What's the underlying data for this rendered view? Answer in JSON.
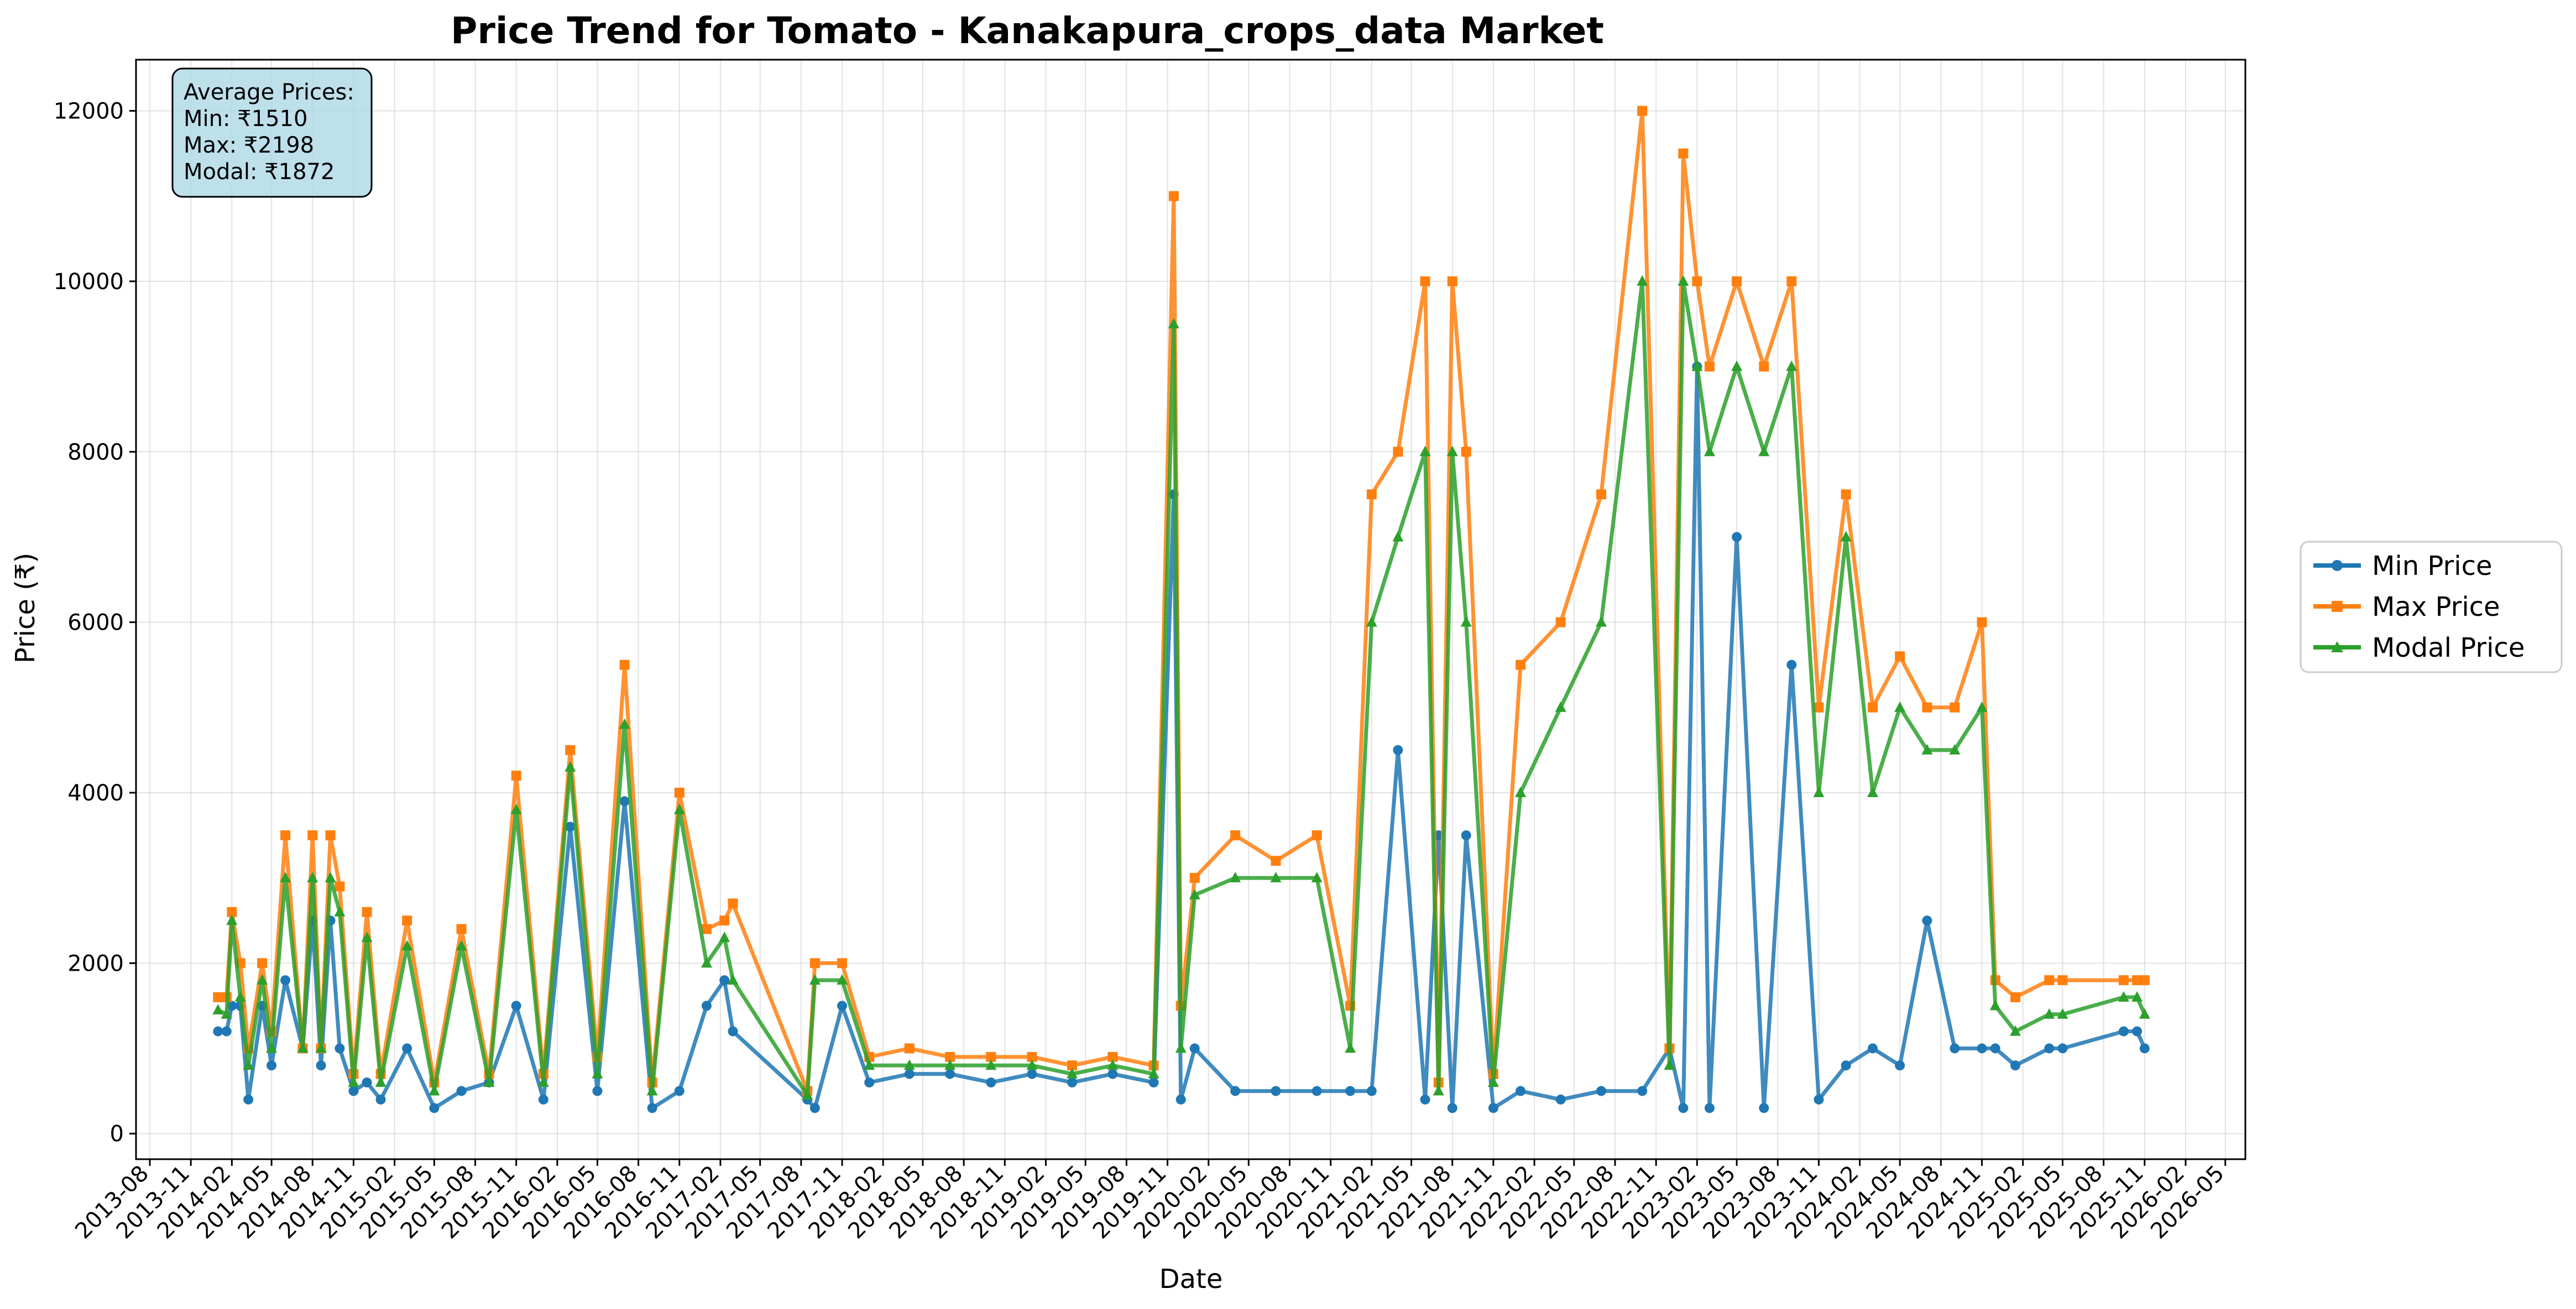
{
  "chart_data": {
    "type": "line",
    "title": "Price Trend for Tomato - Kanakapura_crops_data Market",
    "xlabel": "Date",
    "ylabel": "Price (₹)",
    "ylim": [
      -300,
      12600
    ],
    "xlim": [
      "2013-07-01",
      "2026-06-15"
    ],
    "grid": true,
    "legend_position": "right",
    "y_ticks": [
      0,
      2000,
      4000,
      6000,
      8000,
      10000,
      12000
    ],
    "x_ticks": [
      "2013-08",
      "2013-11",
      "2014-02",
      "2014-05",
      "2014-08",
      "2014-11",
      "2015-02",
      "2015-05",
      "2015-08",
      "2015-11",
      "2016-02",
      "2016-05",
      "2016-08",
      "2016-11",
      "2017-02",
      "2017-05",
      "2017-08",
      "2017-11",
      "2018-02",
      "2018-05",
      "2018-08",
      "2018-11",
      "2019-02",
      "2019-05",
      "2019-08",
      "2019-11",
      "2020-02",
      "2020-05",
      "2020-08",
      "2020-11",
      "2021-02",
      "2021-05",
      "2021-08",
      "2021-11",
      "2022-02",
      "2022-05",
      "2022-08",
      "2022-11",
      "2023-02",
      "2023-05",
      "2023-08",
      "2023-11",
      "2024-02",
      "2024-05",
      "2024-08",
      "2024-11",
      "2025-02",
      "2025-05",
      "2025-08",
      "2025-11",
      "2026-02",
      "2026-05"
    ],
    "stats_box": {
      "heading": "Average Prices:",
      "lines": [
        "Min: ₹1510",
        "Max: ₹2198",
        "Modal: ₹1872"
      ]
    },
    "colors": {
      "min": "#1f77b4",
      "max": "#ff7f0e",
      "modal": "#2ca02c",
      "stats_box_fill": "#add8e6"
    },
    "x": [
      "2014-01-01",
      "2014-01-20",
      "2014-02-01",
      "2014-02-20",
      "2014-03-10",
      "2014-04-10",
      "2014-05-01",
      "2014-06-01",
      "2014-07-10",
      "2014-08-01",
      "2014-08-20",
      "2014-09-10",
      "2014-10-01",
      "2014-11-01",
      "2014-12-01",
      "2015-01-01",
      "2015-03-01",
      "2015-05-01",
      "2015-07-01",
      "2015-09-01",
      "2015-11-01",
      "2016-01-01",
      "2016-03-01",
      "2016-05-01",
      "2016-07-01",
      "2016-09-01",
      "2016-11-01",
      "2017-01-01",
      "2017-02-10",
      "2017-03-01",
      "2017-08-15",
      "2017-09-01",
      "2017-11-01",
      "2018-01-01",
      "2018-04-01",
      "2018-07-01",
      "2018-10-01",
      "2019-01-01",
      "2019-04-01",
      "2019-07-01",
      "2019-10-01",
      "2019-11-15",
      "2019-12-01",
      "2020-01-01",
      "2020-04-01",
      "2020-07-01",
      "2020-10-01",
      "2020-12-15",
      "2021-02-01",
      "2021-04-01",
      "2021-06-01",
      "2021-07-01",
      "2021-08-01",
      "2021-09-01",
      "2021-11-01",
      "2022-01-01",
      "2022-04-01",
      "2022-07-01",
      "2022-10-01",
      "2022-12-01",
      "2023-01-01",
      "2023-02-01",
      "2023-03-01",
      "2023-05-01",
      "2023-07-01",
      "2023-09-01",
      "2023-11-01",
      "2024-01-01",
      "2024-03-01",
      "2024-05-01",
      "2024-07-01",
      "2024-09-01",
      "2024-11-01",
      "2024-12-01",
      "2025-01-15",
      "2025-04-01",
      "2025-05-01",
      "2025-09-15",
      "2025-10-15",
      "2025-11-01"
    ],
    "series": [
      {
        "name": "Min Price",
        "values": [
          1200,
          1200,
          1500,
          1500,
          400,
          1500,
          800,
          1800,
          1000,
          2500,
          800,
          2500,
          1000,
          500,
          600,
          400,
          1000,
          300,
          500,
          600,
          1500,
          400,
          3600,
          500,
          3900,
          300,
          500,
          1500,
          1800,
          1200,
          400,
          300,
          1500,
          600,
          700,
          700,
          600,
          700,
          600,
          700,
          600,
          7500,
          400,
          1000,
          500,
          500,
          500,
          500,
          500,
          4500,
          400,
          3500,
          300,
          3500,
          300,
          500,
          400,
          500,
          500,
          1000,
          300,
          9000,
          300,
          7000,
          300,
          5500,
          400,
          800,
          1000,
          800,
          2500,
          1000,
          1000,
          1000,
          800,
          1000,
          1000,
          1200,
          1200,
          1000
        ]
      },
      {
        "name": "Max Price",
        "values": [
          1600,
          1600,
          2600,
          2000,
          1000,
          2000,
          1200,
          3500,
          1000,
          3500,
          1000,
          3500,
          2900,
          700,
          2600,
          700,
          2500,
          600,
          2400,
          700,
          4200,
          700,
          4500,
          900,
          5500,
          600,
          4000,
          2400,
          2500,
          2700,
          500,
          2000,
          2000,
          900,
          1000,
          900,
          900,
          900,
          800,
          900,
          800,
          11000,
          1500,
          3000,
          3500,
          3200,
          3500,
          1500,
          7500,
          8000,
          10000,
          600,
          10000,
          8000,
          700,
          5500,
          6000,
          7500,
          12000,
          1000,
          11500,
          10000,
          9000,
          10000,
          9000,
          10000,
          5000,
          7500,
          5000,
          5600,
          5000,
          5000,
          6000,
          1800,
          1600,
          1800,
          1800,
          1800,
          1800,
          1800
        ]
      },
      {
        "name": "Modal Price",
        "values": [
          1450,
          1400,
          2500,
          1600,
          800,
          1800,
          1000,
          3000,
          1000,
          3000,
          1000,
          3000,
          2600,
          600,
          2300,
          600,
          2200,
          500,
          2200,
          600,
          3800,
          600,
          4300,
          700,
          4800,
          500,
          3800,
          2000,
          2300,
          1800,
          450,
          1800,
          1800,
          800,
          800,
          800,
          800,
          800,
          700,
          800,
          700,
          9500,
          1000,
          2800,
          3000,
          3000,
          3000,
          1000,
          6000,
          7000,
          8000,
          500,
          8000,
          6000,
          600,
          4000,
          5000,
          6000,
          10000,
          800,
          10000,
          9000,
          8000,
          9000,
          8000,
          9000,
          4000,
          7000,
          4000,
          5000,
          4500,
          4500,
          5000,
          1500,
          1200,
          1400,
          1400,
          1600,
          1600,
          1400
        ]
      }
    ]
  }
}
